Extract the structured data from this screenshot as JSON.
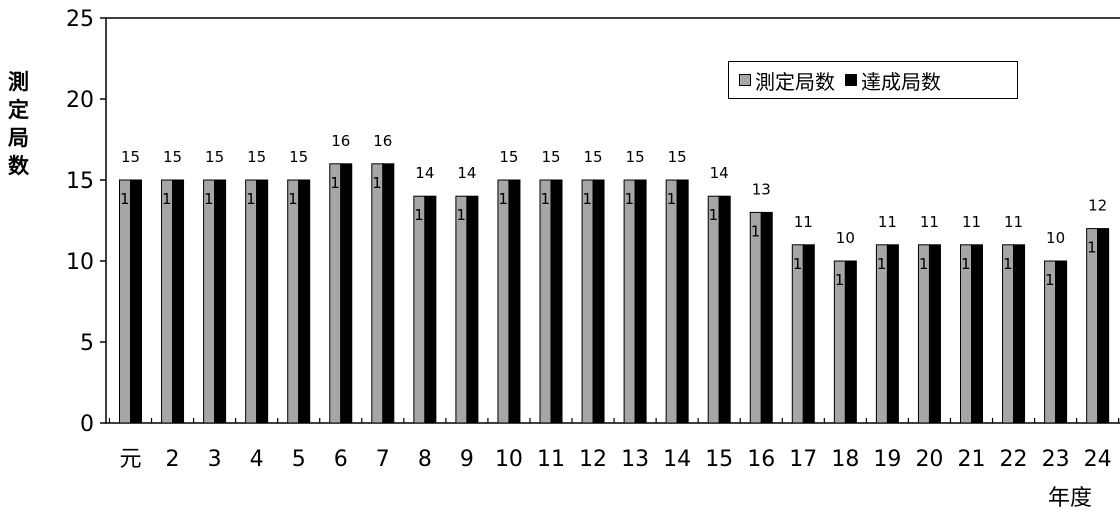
{
  "chart_data": {
    "type": "bar",
    "categories": [
      "元",
      "2",
      "3",
      "4",
      "5",
      "6",
      "7",
      "8",
      "9",
      "10",
      "11",
      "12",
      "13",
      "14",
      "15",
      "16",
      "17",
      "18",
      "19",
      "20",
      "21",
      "22",
      "23",
      "24"
    ],
    "series": [
      {
        "name": "測定局数",
        "values": [
          15,
          15,
          15,
          15,
          15,
          16,
          16,
          14,
          14,
          15,
          15,
          15,
          15,
          15,
          14,
          13,
          11,
          10,
          11,
          11,
          11,
          11,
          10,
          12
        ],
        "color": "#a6a6a6"
      },
      {
        "name": "達成局数",
        "values": [
          15,
          15,
          15,
          15,
          15,
          16,
          16,
          14,
          14,
          15,
          15,
          15,
          15,
          15,
          14,
          13,
          11,
          10,
          11,
          11,
          11,
          11,
          10,
          12
        ],
        "color": "#000000"
      }
    ],
    "ylabel": "測定局数",
    "xlabel": "年度",
    "ylim": [
      0,
      25
    ],
    "yticks": [
      0,
      5,
      10,
      15,
      20,
      25
    ],
    "grid": false,
    "legend_position": "top-right"
  }
}
